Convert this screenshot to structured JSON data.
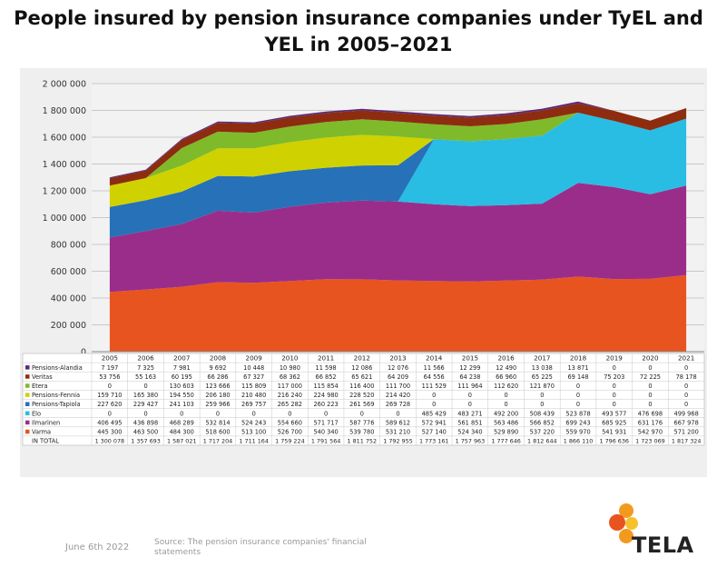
{
  "title": "People insured by pension insurance companies under TyEL and YEL in 2005–2021",
  "footer": {
    "date": "June 6th 2022",
    "source": "Source: The pension insurance companies' financial statements",
    "logo_text": "TELA"
  },
  "chart_data": {
    "type": "area",
    "stacked": true,
    "title": "People insured by pension insurance companies under TyEL and YEL in 2005–2021",
    "xlabel": "",
    "ylabel": "",
    "ylim": [
      0,
      2000000
    ],
    "yticks": [
      "0",
      "200 000",
      "400 000",
      "600 000",
      "800 000",
      "1 000 000",
      "1 200 000",
      "1 400 000",
      "1 600 000",
      "1 800 000",
      "2 000 000"
    ],
    "grid": true,
    "legend": "table-below",
    "x": [
      "2005",
      "2006",
      "2007",
      "2008",
      "2009",
      "2010",
      "2011",
      "2012",
      "2013",
      "2014",
      "2015",
      "2016",
      "2017",
      "2018",
      "2019",
      "2020",
      "2021"
    ],
    "series": [
      {
        "name": "Varma",
        "color": "#e8541f",
        "values": [
          445300,
          463500,
          484300,
          518600,
          513100,
          526700,
          540340,
          539780,
          531210,
          527140,
          524340,
          529890,
          537220,
          559970,
          541931,
          542970,
          571200
        ],
        "labels": [
          "445 300",
          "463 500",
          "484 300",
          "518 600",
          "513 100",
          "526 700",
          "540 340",
          "539 780",
          "531 210",
          "527 140",
          "524 340",
          "529 890",
          "537 220",
          "559 970",
          "541 931",
          "542 970",
          "571 200"
        ]
      },
      {
        "name": "Ilmarinen",
        "color": "#9b2d8a",
        "values": [
          406495,
          436898,
          468289,
          532814,
          524243,
          554660,
          571717,
          587776,
          589612,
          572941,
          561851,
          563486,
          566852,
          699243,
          685925,
          631176,
          667978
        ],
        "labels": [
          "406 495",
          "436 898",
          "468 289",
          "532 814",
          "524 243",
          "554 660",
          "571 717",
          "587 776",
          "589 612",
          "572 941",
          "561 851",
          "563 486",
          "566 852",
          "699 243",
          "685 925",
          "631 176",
          "667 978"
        ]
      },
      {
        "name": "Elo",
        "color": "#29bde4",
        "values": [
          0,
          0,
          0,
          0,
          0,
          0,
          0,
          0,
          0,
          485429,
          483271,
          492200,
          508439,
          523878,
          493577,
          476698,
          499968
        ],
        "labels": [
          "0",
          "0",
          "0",
          "0",
          "0",
          "0",
          "0",
          "0",
          "0",
          "485 429",
          "483 271",
          "492 200",
          "508 439",
          "523 878",
          "493 577",
          "476 698",
          "499 968"
        ]
      },
      {
        "name": "Pensions-Tapiola",
        "color": "#2771b8",
        "values": [
          227620,
          229427,
          241103,
          259966,
          269757,
          265282,
          260223,
          261569,
          269728,
          0,
          0,
          0,
          0,
          0,
          0,
          0,
          0
        ],
        "labels": [
          "227 620",
          "229 427",
          "241 103",
          "259 966",
          "269 757",
          "265 282",
          "260 223",
          "261 569",
          "269 728",
          "0",
          "0",
          "0",
          "0",
          "0",
          "0",
          "0",
          "0"
        ]
      },
      {
        "name": "Pensions-Fennia",
        "color": "#cfd200",
        "values": [
          159710,
          165380,
          194550,
          206180,
          210480,
          216240,
          224980,
          228520,
          214420,
          0,
          0,
          0,
          0,
          0,
          0,
          0,
          0
        ],
        "labels": [
          "159 710",
          "165 380",
          "194 550",
          "206 180",
          "210 480",
          "216 240",
          "224 980",
          "228 520",
          "214 420",
          "0",
          "0",
          "0",
          "0",
          "0",
          "0",
          "0",
          "0"
        ]
      },
      {
        "name": "Etera",
        "color": "#7fba2b",
        "values": [
          0,
          0,
          130603,
          123666,
          115809,
          117000,
          115854,
          116400,
          111700,
          111529,
          111964,
          112620,
          121870,
          0,
          0,
          0,
          0
        ],
        "labels": [
          "0",
          "0",
          "130 603",
          "123 666",
          "115 809",
          "117 000",
          "115 854",
          "116 400",
          "111 700",
          "111 529",
          "111 964",
          "112 620",
          "121 870",
          "0",
          "0",
          "0",
          "0"
        ]
      },
      {
        "name": "Veritas",
        "color": "#8e2c10",
        "values": [
          53756,
          55163,
          60195,
          66286,
          67327,
          68362,
          66852,
          65621,
          64209,
          64556,
          64238,
          66960,
          65225,
          69148,
          75203,
          72225,
          78178
        ],
        "labels": [
          "53 756",
          "55 163",
          "60 195",
          "66 286",
          "67 327",
          "68 362",
          "66 852",
          "65 621",
          "64 209",
          "64 556",
          "64 238",
          "66 960",
          "65 225",
          "69 148",
          "75 203",
          "72 225",
          "78 178"
        ]
      },
      {
        "name": "Pensions-Alandia",
        "color": "#5b2a78",
        "values": [
          7197,
          7325,
          7981,
          9692,
          10448,
          10980,
          11598,
          12086,
          12076,
          11566,
          12299,
          12490,
          13038,
          13871,
          0,
          0,
          0
        ],
        "labels": [
          "7 197",
          "7 325",
          "7 981",
          "9 692",
          "10 448",
          "10 980",
          "11 598",
          "12 086",
          "12 076",
          "11 566",
          "12 299",
          "12 490",
          "13 038",
          "13 871",
          "0",
          "0",
          "0"
        ]
      }
    ],
    "table_row_order": [
      "Pensions-Alandia",
      "Veritas",
      "Etera",
      "Pensions-Fennia",
      "Pensions-Tapiola",
      "Elo",
      "Ilmarinen",
      "Varma"
    ],
    "total": {
      "name": "IN TOTAL",
      "values": [
        1300078,
        1357693,
        1587021,
        1717204,
        1711164,
        1759224,
        1791564,
        1811752,
        1792955,
        1773161,
        1757963,
        1777646,
        1812644,
        1866110,
        1796636,
        1723069,
        1817324
      ],
      "labels": [
        "1 300 078",
        "1 357 693",
        "1 587 021",
        "1 717 204",
        "1 711 164",
        "1 759 224",
        "1 791 564",
        "1 811 752",
        "1 792 955",
        "1 773 161",
        "1 757 963",
        "1 777 646",
        "1 812 644",
        "1 866 110",
        "1 796 636",
        "1 723 069",
        "1 817 324"
      ]
    }
  }
}
